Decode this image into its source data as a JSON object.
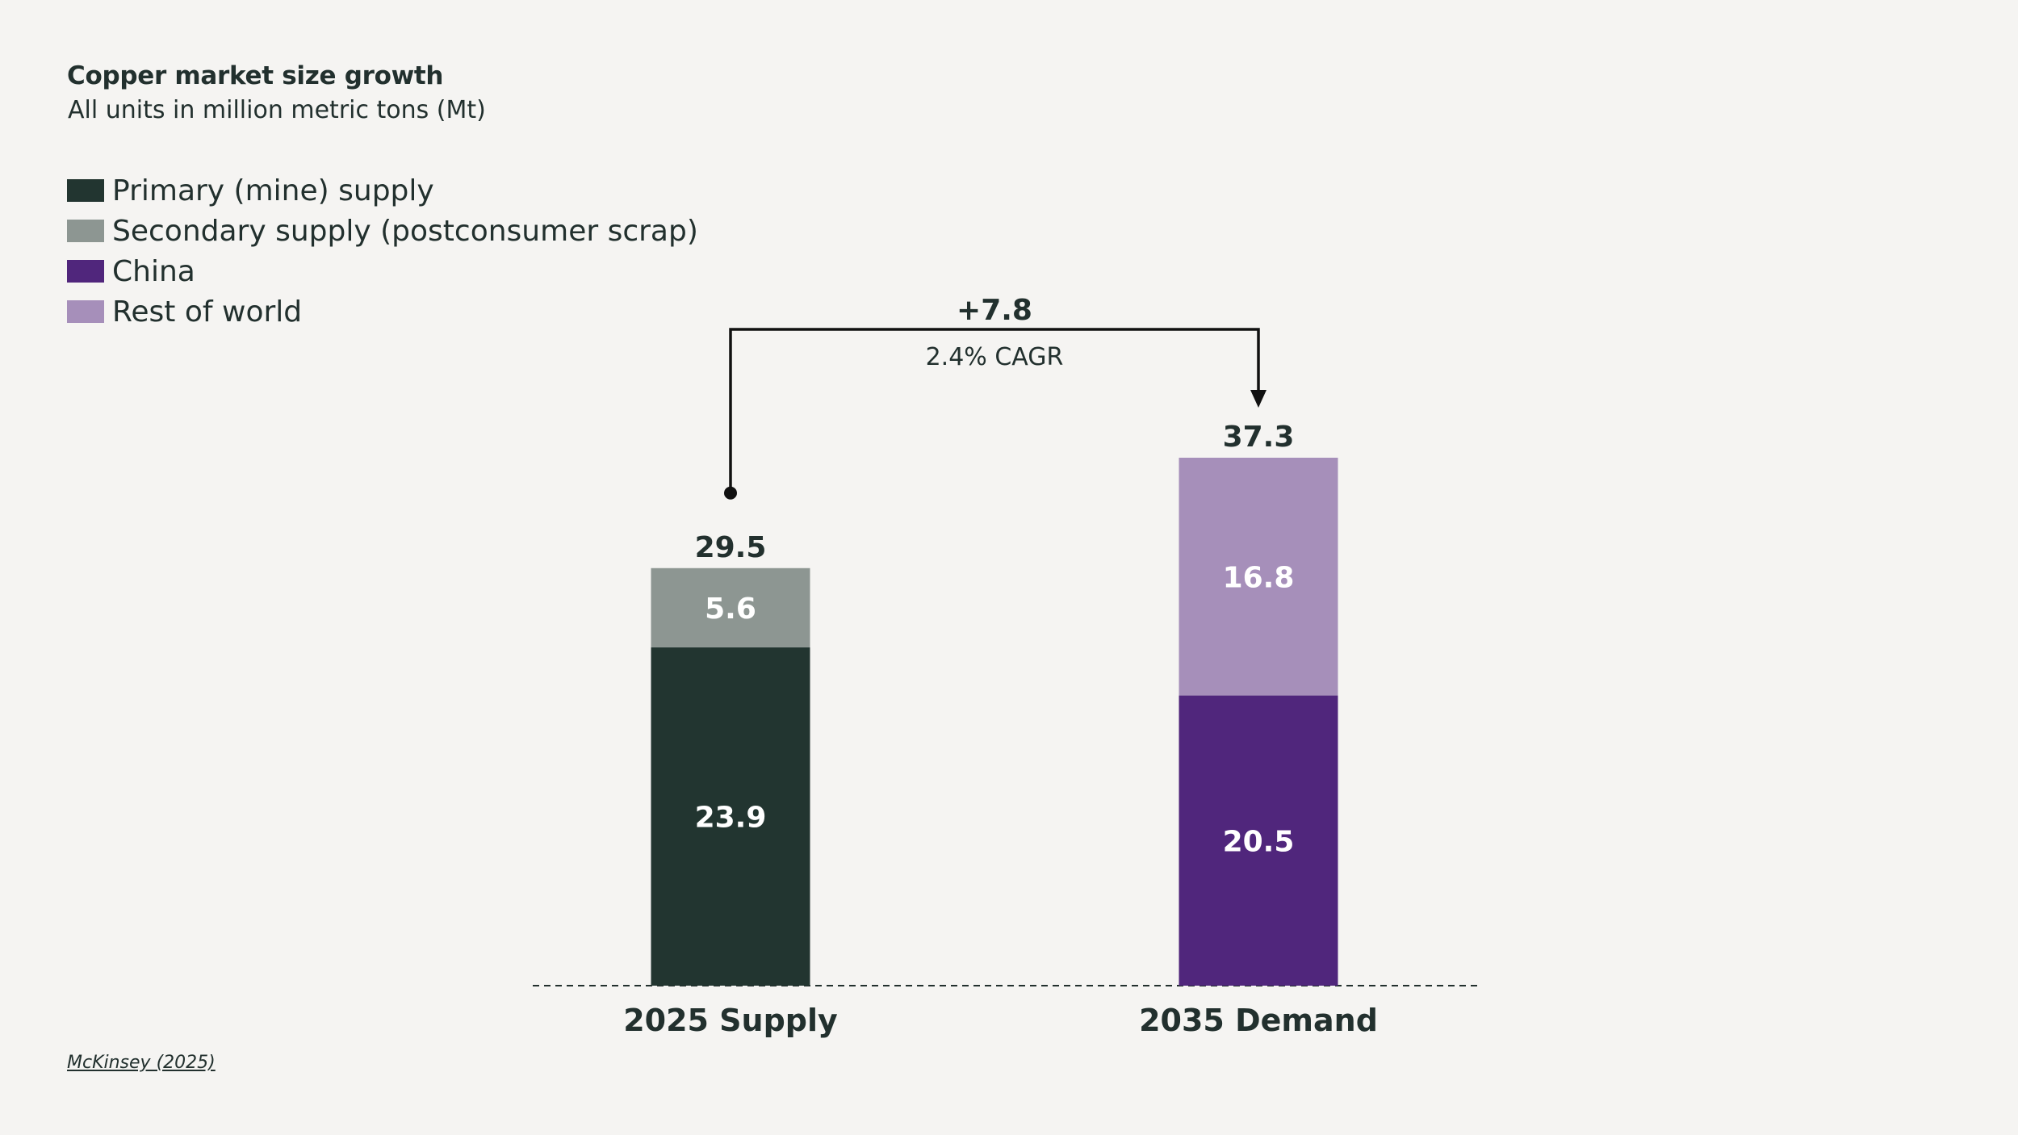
{
  "chart_data": {
    "type": "bar",
    "stacked": true,
    "title": "Copper market size growth",
    "subtitle": "All units in million metric tons (Mt)",
    "categories": [
      "2025 Supply",
      "2035 Demand"
    ],
    "bars": [
      {
        "category": "2025 Supply",
        "total": 29.5,
        "segments": [
          {
            "series": "Primary (mine) supply",
            "value": 23.9,
            "label": "23.9",
            "color": "#223530"
          },
          {
            "series": "Secondary supply (postconsumer scrap)",
            "value": 5.6,
            "label": "5.6",
            "color": "#8d9692"
          }
        ],
        "total_label": "29.5"
      },
      {
        "category": "2035 Demand",
        "total": 37.3,
        "segments": [
          {
            "series": "China",
            "value": 20.5,
            "label": "20.5",
            "color": "#50267c"
          },
          {
            "series": "Rest of world",
            "value": 16.8,
            "label": "16.8",
            "color": "#a68fba"
          }
        ],
        "total_label": "37.3"
      }
    ],
    "legend": [
      {
        "label": "Primary (mine) supply",
        "color": "#223530"
      },
      {
        "label": "Secondary supply (postconsumer scrap)",
        "color": "#8d9692"
      },
      {
        "label": "China",
        "color": "#50267c"
      },
      {
        "label": "Rest of world",
        "color": "#a68fba"
      }
    ],
    "annotation": {
      "delta": "+7.8",
      "cagr": "2.4% CAGR"
    },
    "ylim": [
      0,
      37.3
    ],
    "grid": false
  },
  "source": "McKinsey (2025)"
}
